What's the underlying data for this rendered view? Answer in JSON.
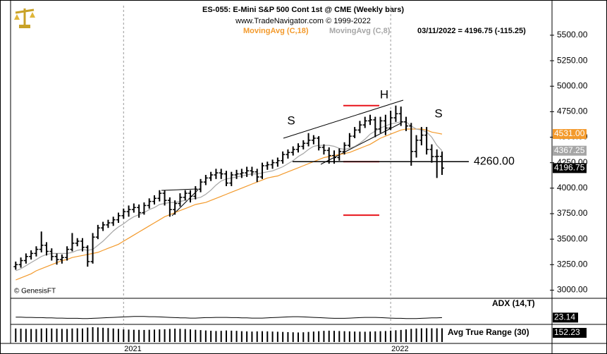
{
  "chart_data": [
    {
      "type": "ohlc",
      "title": "ES-055:  E-Mini S&P 500 Cont 1st @ CME  (Weekly bars)",
      "subtitle": "www.TradeNavigator.com © 1999-2022",
      "quote": "03/11/2022 = 4196.75 (-115.25)",
      "credit": "© GenesisFT",
      "color": "#000000",
      "open": [
        3230,
        3250,
        3290,
        3330,
        3360,
        3400,
        3440,
        3380,
        3330,
        3300,
        3320,
        3400,
        3460,
        3480,
        3420,
        3280,
        3520,
        3610,
        3640,
        3660,
        3690,
        3730,
        3770,
        3790,
        3810,
        3760,
        3830,
        3870,
        3900,
        3950,
        3880,
        3790,
        3850,
        3910,
        3950,
        3920,
        3990,
        4060,
        4100,
        4130,
        4150,
        4140,
        4050,
        4130,
        4140,
        4150,
        4170,
        4160,
        4110,
        4220,
        4230,
        4250,
        4270,
        4330,
        4350,
        4380,
        4410,
        4440,
        4470,
        4490,
        4400,
        4370,
        4320,
        4300,
        4360,
        4420,
        4510,
        4570,
        4620,
        4660,
        4670,
        4580,
        4660,
        4590,
        4690,
        4730,
        4650,
        4610,
        4360,
        4470,
        4520,
        4380,
        4310,
        4312
      ],
      "high": [
        3280,
        3320,
        3360,
        3390,
        3430,
        3575,
        3470,
        3410,
        3360,
        3350,
        3430,
        3560,
        3510,
        3510,
        3440,
        3560,
        3640,
        3670,
        3690,
        3720,
        3760,
        3800,
        3830,
        3850,
        3840,
        3860,
        3900,
        3930,
        3980,
        3980,
        3910,
        3880,
        3950,
        3980,
        3980,
        4020,
        4090,
        4130,
        4160,
        4190,
        4190,
        4170,
        4160,
        4180,
        4190,
        4210,
        4210,
        4190,
        4250,
        4260,
        4280,
        4300,
        4360,
        4380,
        4410,
        4440,
        4470,
        4540,
        4520,
        4510,
        4430,
        4400,
        4370,
        4390,
        4450,
        4540,
        4600,
        4660,
        4700,
        4720,
        4700,
        4700,
        4720,
        4760,
        4810,
        4800,
        4700,
        4640,
        4520,
        4600,
        4600,
        4430,
        4380,
        4360
      ],
      "low": [
        3200,
        3220,
        3260,
        3300,
        3330,
        3370,
        3340,
        3290,
        3250,
        3260,
        3290,
        3380,
        3430,
        3380,
        3230,
        3260,
        3500,
        3580,
        3610,
        3630,
        3660,
        3700,
        3720,
        3760,
        3710,
        3740,
        3800,
        3840,
        3870,
        3830,
        3720,
        3740,
        3820,
        3880,
        3860,
        3890,
        3960,
        4030,
        4070,
        4090,
        4090,
        4020,
        4020,
        4090,
        4100,
        4110,
        4120,
        4060,
        4090,
        4180,
        4190,
        4210,
        4240,
        4290,
        4320,
        4350,
        4380,
        4410,
        4430,
        4370,
        4330,
        4240,
        4240,
        4270,
        4330,
        4400,
        4490,
        4540,
        4590,
        4620,
        4500,
        4540,
        4520,
        4570,
        4650,
        4610,
        4560,
        4220,
        4300,
        4420,
        4330,
        4250,
        4100,
        4130
      ],
      "close": [
        3250,
        3290,
        3330,
        3360,
        3400,
        3440,
        3380,
        3330,
        3300,
        3320,
        3400,
        3460,
        3480,
        3420,
        3280,
        3520,
        3610,
        3640,
        3660,
        3690,
        3730,
        3770,
        3790,
        3810,
        3760,
        3830,
        3870,
        3900,
        3950,
        3880,
        3790,
        3850,
        3910,
        3950,
        3920,
        3990,
        4060,
        4100,
        4130,
        4150,
        4140,
        4050,
        4130,
        4140,
        4150,
        4170,
        4160,
        4110,
        4220,
        4230,
        4250,
        4270,
        4330,
        4350,
        4380,
        4410,
        4440,
        4470,
        4490,
        4400,
        4370,
        4320,
        4300,
        4360,
        4420,
        4510,
        4570,
        4620,
        4660,
        4670,
        4580,
        4660,
        4590,
        4690,
        4730,
        4650,
        4610,
        4360,
        4470,
        4520,
        4380,
        4310,
        4312,
        4196.75
      ],
      "series": [
        {
          "name": "MovingAvg (C,18)",
          "color": "#f39a2c",
          "last_label": "4531.00",
          "values": [
            3100,
            3120,
            3140,
            3160,
            3190,
            3210,
            3230,
            3250,
            3270,
            3290,
            3300,
            3320,
            3330,
            3340,
            3350,
            3360,
            3370,
            3390,
            3410,
            3430,
            3450,
            3480,
            3510,
            3540,
            3570,
            3600,
            3630,
            3660,
            3690,
            3720,
            3740,
            3760,
            3780,
            3800,
            3820,
            3840,
            3850,
            3860,
            3880,
            3900,
            3920,
            3940,
            3960,
            3980,
            4000,
            4020,
            4040,
            4060,
            4080,
            4100,
            4110,
            4120,
            4140,
            4160,
            4180,
            4200,
            4220,
            4240,
            4260,
            4280,
            4300,
            4310,
            4320,
            4330,
            4340,
            4350,
            4370,
            4390,
            4410,
            4430,
            4460,
            4490,
            4510,
            4530,
            4550,
            4570,
            4580,
            4580,
            4580,
            4580,
            4570,
            4550,
            4540,
            4531
          ]
        },
        {
          "name": "MovingAvg (C,8)",
          "color": "#a6a6a6",
          "last_label": "4367.25",
          "values": [
            3190,
            3210,
            3240,
            3270,
            3300,
            3330,
            3350,
            3360,
            3360,
            3360,
            3360,
            3370,
            3390,
            3400,
            3390,
            3400,
            3440,
            3480,
            3530,
            3580,
            3620,
            3650,
            3690,
            3720,
            3740,
            3760,
            3790,
            3810,
            3840,
            3850,
            3860,
            3860,
            3870,
            3880,
            3890,
            3900,
            3910,
            3940,
            3980,
            4030,
            4070,
            4090,
            4100,
            4110,
            4120,
            4130,
            4140,
            4140,
            4150,
            4160,
            4170,
            4190,
            4210,
            4240,
            4270,
            4310,
            4340,
            4380,
            4410,
            4420,
            4420,
            4420,
            4410,
            4390,
            4380,
            4390,
            4410,
            4440,
            4480,
            4530,
            4560,
            4590,
            4610,
            4630,
            4640,
            4650,
            4650,
            4610,
            4580,
            4570,
            4550,
            4500,
            4420,
            4367.25
          ]
        }
      ],
      "annotations": [
        "S",
        "H",
        "S"
      ],
      "neckline": {
        "value": 4260,
        "label": "4260.00"
      },
      "target_lines": [
        4810,
        4260,
        3735
      ],
      "target_color": "#e8141b",
      "xlim": [
        -1,
        104
      ],
      "xticks": [
        {
          "value": 21,
          "label": "2021"
        },
        {
          "value": 73,
          "label": "2022"
        }
      ],
      "ylim": [
        2920,
        5790
      ],
      "yticks": [
        {
          "value": 3000,
          "label": "3000.00"
        },
        {
          "value": 3250,
          "label": "3250.00"
        },
        {
          "value": 3500,
          "label": "3500.00"
        },
        {
          "value": 3750,
          "label": "3750.00"
        },
        {
          "value": 4000,
          "label": "4000.00"
        },
        {
          "value": 4250,
          "label": "4250.00"
        },
        {
          "value": 4500,
          "label": "4500.00"
        },
        {
          "value": 4750,
          "label": "4750.00"
        },
        {
          "value": 5000,
          "label": "5000.00"
        },
        {
          "value": 5250,
          "label": "5250.00"
        },
        {
          "value": 5500,
          "label": "5500.00"
        }
      ]
    },
    {
      "type": "line",
      "title": "ADX (14,T)",
      "color": "#000000",
      "ylim": [
        0,
        100
      ],
      "values": [
        25,
        25,
        24,
        24,
        23,
        23,
        22,
        22,
        21,
        21,
        20,
        20,
        20,
        19,
        19,
        20,
        21,
        22,
        23,
        24,
        25,
        26,
        27,
        28,
        28,
        28,
        27,
        27,
        26,
        25,
        24,
        23,
        22,
        22,
        21,
        21,
        22,
        23,
        23,
        24,
        24,
        24,
        23,
        23,
        22,
        22,
        21,
        21,
        21,
        22,
        23,
        24,
        25,
        26,
        27,
        27,
        26,
        25,
        24,
        23,
        22,
        21,
        20,
        20,
        20,
        21,
        22,
        23,
        24,
        24,
        24,
        23,
        22,
        21,
        20,
        20,
        19,
        19,
        19,
        20,
        21,
        22,
        22,
        23.14
      ]
    },
    {
      "type": "bar",
      "title": "Avg True Range (30)",
      "color": "#000000",
      "ylim": [
        0,
        180
      ],
      "values": [
        150,
        148,
        146,
        145,
        144,
        150,
        152,
        150,
        148,
        146,
        145,
        150,
        152,
        150,
        160,
        165,
        162,
        158,
        155,
        150,
        145,
        140,
        138,
        136,
        135,
        134,
        136,
        138,
        140,
        142,
        145,
        148,
        146,
        144,
        140,
        136,
        132,
        128,
        125,
        122,
        124,
        128,
        126,
        124,
        120,
        118,
        116,
        118,
        120,
        118,
        116,
        114,
        112,
        110,
        108,
        106,
        108,
        112,
        116,
        120,
        124,
        126,
        124,
        122,
        120,
        118,
        116,
        115,
        114,
        116,
        118,
        120,
        122,
        126,
        130,
        134,
        140,
        146,
        150,
        152,
        153,
        152,
        152,
        152.23
      ]
    }
  ]
}
